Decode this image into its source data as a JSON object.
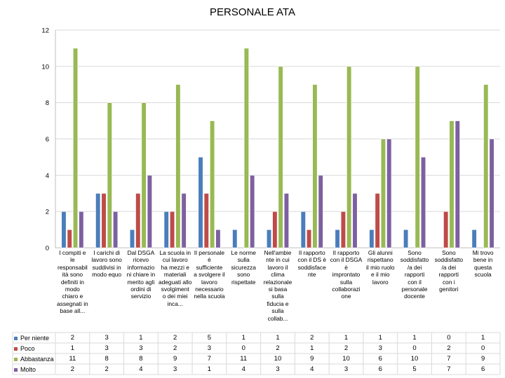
{
  "chart_data": {
    "type": "bar",
    "title": "PERSONALE ATA",
    "ylim": [
      0,
      12
    ],
    "yticks": [
      0,
      2,
      4,
      6,
      8,
      10,
      12
    ],
    "grid": true,
    "legend": "bottom-left table",
    "categories": [
      "I compiti e le responsabilità sono definiti in modo chiaro e assegnati in base all...",
      "I carichi di lavoro sono suddivisi in modo equo",
      "Dal DSGA ricevo informazioni chiare in merito agli ordini di servizio",
      "La scuola in cui lavoro ha mezzi e materiali adeguati allo svolgimento dei miei inca...",
      "Il personale è sufficiente a svolgere il lavoro necessario nella scuola",
      "Le norme sulla sicurezza sono rispettate",
      "Nell'ambiente in cui lavoro il clima relazionale si basa sulla fiducia e sulla collab...",
      "Il rapporto con il DS è soddisfacente",
      "Il rapporto con il DSGA è improntato sulla collaborazione",
      "Gli alunni rispettano il mio ruolo e il mio lavoro",
      "Sono soddisfatto/a dei rapporti con il personale docente",
      "Sono soddisfatto/a dei rapporti con i genitori",
      "Mi trovo bene in questa scuola"
    ],
    "series": [
      {
        "name": "Per niente",
        "color": "#4a7ebb",
        "values": [
          2,
          3,
          1,
          2,
          5,
          1,
          1,
          2,
          1,
          1,
          1,
          0,
          1
        ]
      },
      {
        "name": "Poco",
        "color": "#be4b48",
        "values": [
          1,
          3,
          3,
          2,
          3,
          0,
          2,
          1,
          2,
          3,
          0,
          2,
          0
        ]
      },
      {
        "name": "Abbastanza",
        "color": "#98b954",
        "values": [
          11,
          8,
          8,
          9,
          7,
          11,
          10,
          9,
          10,
          6,
          10,
          7,
          9
        ]
      },
      {
        "name": "Molto",
        "color": "#7d60a0",
        "values": [
          2,
          2,
          4,
          3,
          1,
          4,
          3,
          4,
          3,
          6,
          5,
          7,
          6
        ]
      }
    ]
  },
  "axis_labels": {
    "categories": [
      "I compiti e\nle\nresponsabil\nità sono\ndefiniti in\nmodo\nchiaro e\nassegnati in\nbase all...",
      "I carichi di\nlavoro sono\nsuddivisi in\nmodo equo",
      "Dal DSGA\nricevo\ninformazio\nni chiare in\nmerito agli\nordini di\nservizio",
      "La scuola in\ncui lavoro\nha mezzi e\nmateriali\nadeguati allo\nsvolgiment\no dei miei\ninca...",
      "Il personale\nè\nsufficiente\na svolgere il\nlavoro\nnecessario\nnella scuola",
      "Le norme\nsulla\nsicurezza\nsono\nrispettate",
      "Nell'ambie\nnte in cui\nlavoro il\nclima\nrelazionale\nsi basa\nsulla\nfiducia e\nsulla\ncollab...",
      "Il rapporto\ncon il DS è\nsoddisface\nnte",
      "Il rapporto\ncon il DSGA\nè\nimprontato\nsulla\ncollaborazi\none",
      "Gli alunni\nrispettano\nil mio ruolo\ne il mio\nlavoro",
      "Sono\nsoddisfatto\n/a dei\nrapporti\ncon il\npersonale\ndocente",
      "Sono\nsoddisfatto\n/a dei\nrapporti\ncon i\ngenitori",
      "Mi trovo\nbene in\nquesta\nscuola"
    ]
  }
}
